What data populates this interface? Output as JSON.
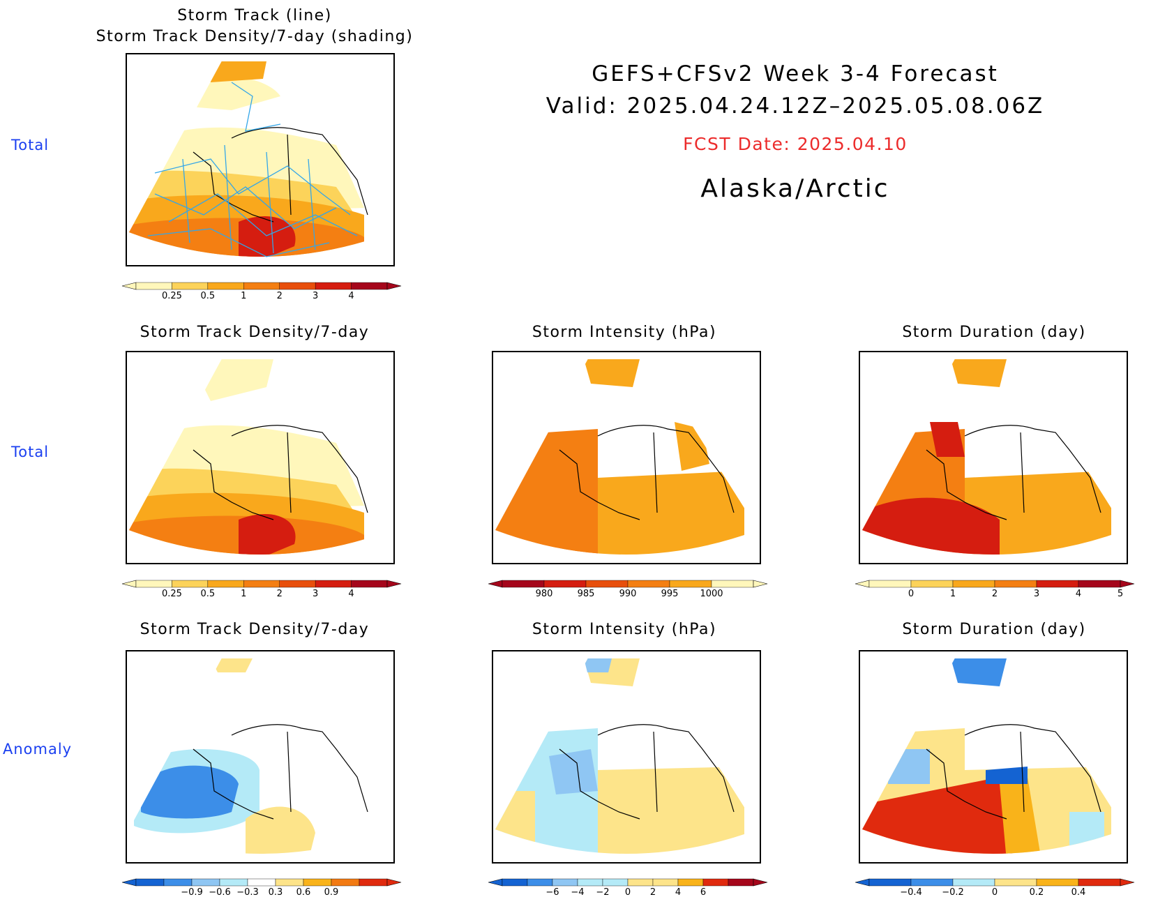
{
  "header": {
    "title": "GEFS+CFSv2 Week 3-4 Forecast",
    "valid": "Valid: 2025.04.24.12Z–2025.05.08.06Z",
    "fcst_date": "FCST Date: 2025.04.10",
    "region": "Alaska/Arctic"
  },
  "row_labels": {
    "row1": "Total",
    "row2": "Total",
    "row3": "Anomaly"
  },
  "panels": {
    "track": {
      "title_line1": "Storm Track (line)",
      "title_line2": "Storm Track Density/7-day (shading)"
    },
    "density_total": {
      "title": "Storm Track Density/7-day"
    },
    "intensity_total": {
      "title": "Storm Intensity (hPa)"
    },
    "duration_total": {
      "title": "Storm Duration (day)"
    },
    "density_anom": {
      "title": "Storm Track Density/7-day"
    },
    "intensity_anom": {
      "title": "Storm Intensity (hPa)"
    },
    "duration_anom": {
      "title": "Storm Duration (day)"
    }
  },
  "colorbars": {
    "density": {
      "labels": [
        "0.25",
        "0.5",
        "1",
        "2",
        "3",
        "4"
      ],
      "colors": [
        "#fff7bb",
        "#fcd35a",
        "#f9a81c",
        "#f47f12",
        "#e84f0c",
        "#d51d10",
        "#a5061b"
      ]
    },
    "intensity": {
      "labels": [
        "980",
        "985",
        "990",
        "995",
        "1000"
      ],
      "colors": [
        "#a5061b",
        "#d51d10",
        "#e84f0c",
        "#f47f12",
        "#f9a81c",
        "#fff7bb"
      ]
    },
    "duration": {
      "labels": [
        "0",
        "1",
        "2",
        "3",
        "4",
        "5"
      ],
      "colors": [
        "#fff7bb",
        "#fcd35a",
        "#f9a81c",
        "#f47f12",
        "#d51d10",
        "#a5061b"
      ]
    },
    "density_anom": {
      "labels": [
        "−0.9",
        "−0.6",
        "−0.3",
        "0.3",
        "0.6",
        "0.9"
      ],
      "colors": [
        "#1463d2",
        "#3c8ee8",
        "#8fc6f3",
        "#b4eaf7",
        "#ffffff",
        "#fde48a",
        "#f9b31a",
        "#f27a12",
        "#e02a0e"
      ]
    },
    "intensity_anom": {
      "labels": [
        "−6",
        "−4",
        "−2",
        "0",
        "2",
        "4",
        "6"
      ],
      "colors": [
        "#1463d2",
        "#3c8ee8",
        "#8fc6f3",
        "#b4eaf7",
        "#b4eaf7",
        "#fde48a",
        "#fde48a",
        "#f9b31a",
        "#e02a0e",
        "#a5061b"
      ]
    },
    "duration_anom": {
      "labels": [
        "−0.4",
        "−0.2",
        "0",
        "0.2",
        "0.4"
      ],
      "colors": [
        "#1463d2",
        "#3c8ee8",
        "#b4eaf7",
        "#fde48a",
        "#f9b31a",
        "#e02a0e"
      ]
    }
  }
}
